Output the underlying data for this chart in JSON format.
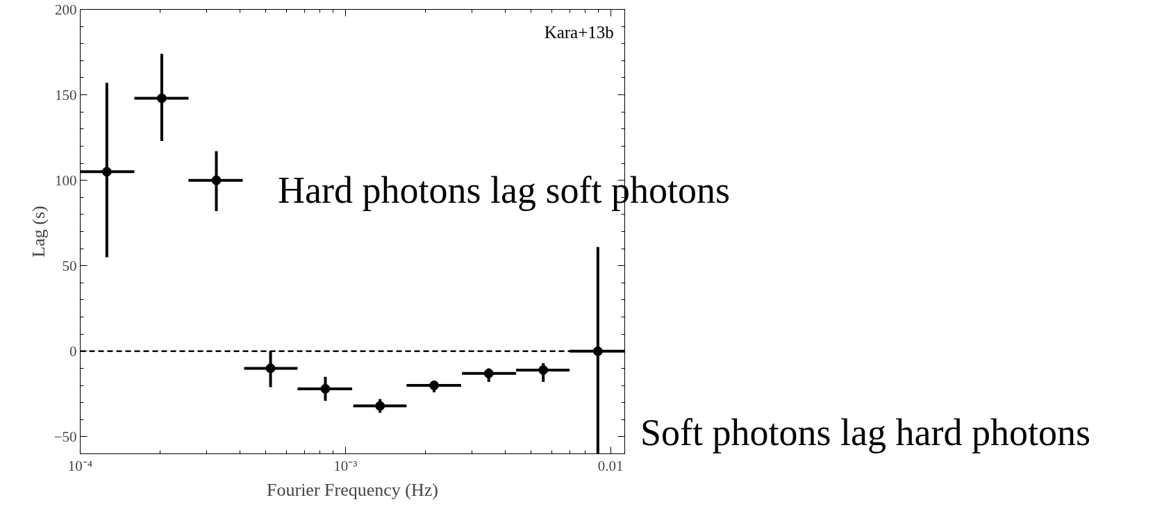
{
  "chart_data": {
    "type": "scatter",
    "xlabel": "Fourier Frequency (Hz)",
    "ylabel": "Lag (s)",
    "x": [
      0.000126,
      0.000203,
      0.000326,
      0.000522,
      0.00084,
      0.00135,
      0.00216,
      0.00347,
      0.00557,
      0.00895
    ],
    "series": [
      {
        "color": "#000000",
        "values": [
          105,
          148,
          100,
          -10,
          -22,
          -32,
          -20,
          -13,
          -11,
          0
        ],
        "errors": [
          [
            55,
            157
          ],
          [
            123,
            174
          ],
          [
            82,
            117
          ],
          [
            -21,
            0
          ],
          [
            -29,
            -15
          ],
          [
            -36,
            -28
          ],
          [
            -24,
            -18
          ],
          [
            -18,
            -10
          ],
          [
            -18,
            -7
          ],
          [
            -60,
            61
          ]
        ],
        "xerrors": [
          [
            0.0001,
            0.00016
          ],
          [
            0.00016,
            0.000256
          ],
          [
            0.000256,
            0.00041
          ],
          [
            0.000415,
            0.00066
          ],
          [
            0.00066,
            0.00106
          ],
          [
            0.00107,
            0.0017
          ],
          [
            0.0017,
            0.00273
          ],
          [
            0.00275,
            0.0044
          ],
          [
            0.0044,
            0.007
          ],
          [
            0.007,
            0.0113
          ]
        ]
      }
    ],
    "xlim": [
      0.0001,
      0.0113
    ],
    "ylim": [
      -60,
      200
    ],
    "xticks": [
      {
        "value": 0.0001,
        "label": "10⁻⁴"
      },
      {
        "value": 0.001,
        "label": "10⁻³"
      },
      0.01
    ],
    "yticks": [
      {
        "value": -50,
        "label": "−50"
      },
      0,
      50,
      100,
      150,
      200
    ],
    "log": "x",
    "grid": false,
    "marker": "circle",
    "ref_lines": [
      {
        "axis": "y",
        "value": 0,
        "line_style": "dashed",
        "color": "#000000"
      }
    ],
    "annotations": [
      "Kara+13b",
      "Hard photons lag soft photons",
      "Soft photons lag hard photons"
    ]
  }
}
